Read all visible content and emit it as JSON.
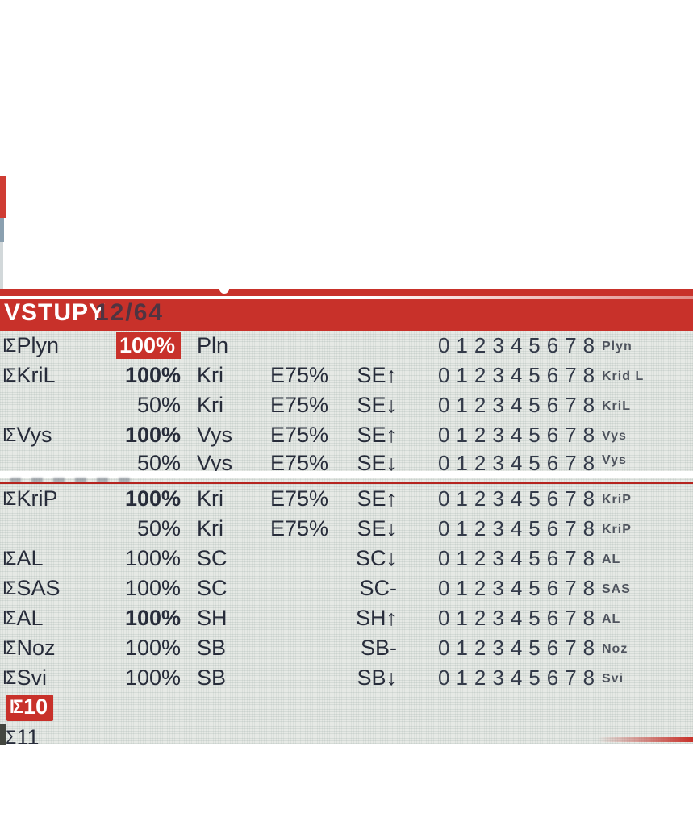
{
  "header": {
    "title": "VSTUPY",
    "page": "12/64"
  },
  "icons": {
    "input_glyph": "ΙΣ",
    "scroll_ring": "white-ring"
  },
  "colors": {
    "accent_red": "#c8312a",
    "screen_bg": "#e6e9e5",
    "text_dark": "#272c3a"
  },
  "rows": [
    {
      "name": "Plyn",
      "pct": "100%",
      "src": "Pln",
      "expo": "",
      "sw": "",
      "digits": "012345678",
      "tag": "Plyn"
    },
    {
      "name": "KriL",
      "pct": "100%",
      "src": "Kri",
      "expo": "E75%",
      "sw": "SE↑",
      "digits": "012345678",
      "tag": "Krid L"
    },
    {
      "name": "",
      "pct": "50%",
      "src": "Kri",
      "expo": "E75%",
      "sw": "SE↓",
      "digits": "012345678",
      "tag": "KriL"
    },
    {
      "name": "Vys",
      "pct": "100%",
      "src": "Vys",
      "expo": "E75%",
      "sw": "SE↑",
      "digits": "012345678",
      "tag": "Vys"
    },
    {
      "name": "",
      "pct": "50%",
      "src": "Vys",
      "expo": "E75%",
      "sw": "SE↓",
      "digits": "012345678",
      "tag": "Vys"
    },
    {
      "name": "KriP",
      "pct": "100%",
      "src": "Kri",
      "expo": "E75%",
      "sw": "SE↑",
      "digits": "012345678",
      "tag": "KriP"
    },
    {
      "name": "",
      "pct": "50%",
      "src": "Kri",
      "expo": "E75%",
      "sw": "SE↓",
      "digits": "012345678",
      "tag": "KriP"
    },
    {
      "name": "AL",
      "pct": "100%",
      "src": "SC",
      "expo": "",
      "sw": "SC↓",
      "digits": "012345678",
      "tag": "AL"
    },
    {
      "name": "SAS",
      "pct": "100%",
      "src": "SC",
      "expo": "",
      "sw": "SC-",
      "digits": "012345678",
      "tag": "SAS"
    },
    {
      "name": "AL",
      "pct": "100%",
      "src": "SH",
      "expo": "",
      "sw": "SH↑",
      "digits": "012345678",
      "tag": "AL"
    },
    {
      "name": "Noz",
      "pct": "100%",
      "src": "SB",
      "expo": "",
      "sw": "SB-",
      "digits": "012345678",
      "tag": "Noz"
    },
    {
      "name": "Svi",
      "pct": "100%",
      "src": "SB",
      "expo": "",
      "sw": "SB↓",
      "digits": "012345678",
      "tag": "Svi"
    },
    {
      "name": "10"
    },
    {
      "name": "11"
    }
  ]
}
